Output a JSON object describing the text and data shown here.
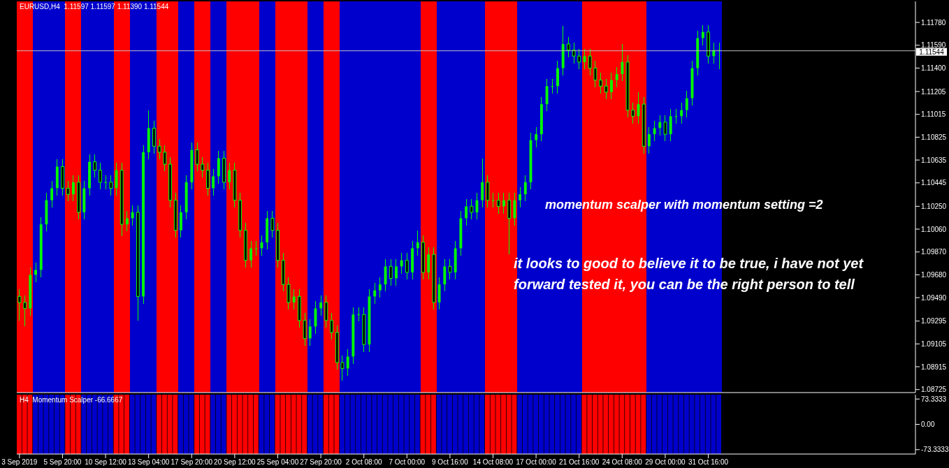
{
  "chart_data": [
    {
      "type": "candlestick",
      "title": "EURUSD,H4  1.11597 1.11597 1.11390 1.11544",
      "categories": [
        null,
        null,
        null,
        null,
        null,
        null,
        null,
        null,
        null,
        null,
        null,
        null,
        null,
        null,
        null,
        null,
        null,
        null,
        null,
        null,
        null,
        null,
        null,
        null,
        null,
        null,
        null,
        null,
        null,
        null,
        null,
        null,
        null,
        null,
        null,
        null,
        null,
        null,
        null,
        null,
        null,
        null,
        null,
        null,
        null,
        null,
        null,
        null,
        null,
        null,
        null,
        null,
        null,
        null,
        null,
        null,
        null,
        null,
        null,
        null,
        null,
        null,
        null,
        null,
        null,
        null,
        null,
        null,
        null,
        null,
        null,
        null,
        null,
        null,
        null,
        null,
        null,
        null,
        null,
        null,
        null,
        null,
        null,
        null,
        null,
        null,
        null,
        null,
        null,
        null,
        null,
        null,
        null,
        null,
        null,
        null,
        null,
        null,
        null,
        null,
        null,
        null,
        null,
        null,
        null,
        null,
        null,
        null,
        null,
        null,
        null,
        null,
        null,
        null,
        null,
        null,
        null,
        null,
        null,
        null,
        null,
        null,
        null,
        null,
        null,
        null,
        null,
        null,
        null,
        null,
        null,
        null,
        null,
        null,
        null,
        null,
        null,
        null,
        null,
        null,
        null,
        null,
        null,
        null,
        null,
        null,
        null,
        null,
        null,
        null,
        null,
        null,
        null,
        null,
        null,
        null,
        null,
        null,
        null,
        null,
        null,
        null,
        null,
        null,
        null,
        null,
        null
      ],
      "series": [
        {
          "color": "#00ff00",
          "ohlc": [
            [
              1.095,
              1.0956,
              1.093,
              1.0945
            ],
            [
              1.0945,
              1.0951,
              1.0925,
              1.094
            ],
            [
              1.094,
              1.0974,
              1.0934,
              1.0968
            ],
            [
              1.0968,
              1.0978,
              1.0962,
              1.0972
            ],
            [
              1.0972,
              1.1016,
              1.0966,
              1.101
            ],
            [
              1.101,
              1.1036,
              1.1004,
              1.103
            ],
            [
              1.103,
              1.1046,
              1.1024,
              1.104
            ],
            [
              1.104,
              1.1064,
              1.1034,
              1.1058
            ],
            [
              1.1058,
              1.1064,
              1.1034,
              1.104
            ],
            [
              1.104,
              1.1046,
              1.1029,
              1.1035
            ],
            [
              1.1035,
              1.1051,
              1.1029,
              1.1045
            ],
            [
              1.1045,
              1.1051,
              1.1014,
              1.102
            ],
            [
              1.102,
              1.1046,
              1.1014,
              1.104
            ],
            [
              1.104,
              1.1068,
              1.1034,
              1.1062
            ],
            [
              1.1062,
              1.1068,
              1.1049,
              1.1055
            ],
            [
              1.1055,
              1.1061,
              1.1039,
              1.1045
            ],
            [
              1.1045,
              1.1051,
              1.1039,
              1.1045
            ],
            [
              1.1045,
              1.1051,
              1.1034,
              1.104
            ],
            [
              1.104,
              1.1061,
              1.1034,
              1.1055
            ],
            [
              1.1055,
              1.1061,
              1.1,
              1.101
            ],
            [
              1.101,
              1.1021,
              1.1004,
              1.1015
            ],
            [
              1.1015,
              1.1026,
              1.1009,
              1.102
            ],
            [
              1.102,
              1.1026,
              1.093,
              1.095
            ],
            [
              1.095,
              1.1076,
              1.0944,
              1.107
            ],
            [
              1.107,
              1.1105,
              1.1064,
              1.109
            ],
            [
              1.109,
              1.1096,
              1.1069,
              1.1075
            ],
            [
              1.1075,
              1.1081,
              1.1064,
              1.107
            ],
            [
              1.107,
              1.1076,
              1.1054,
              1.106
            ],
            [
              1.106,
              1.1066,
              1.1024,
              1.103
            ],
            [
              1.103,
              1.1036,
              1.0999,
              1.1005
            ],
            [
              1.1005,
              1.1026,
              1.0999,
              1.102
            ],
            [
              1.102,
              1.1051,
              1.1014,
              1.1045
            ],
            [
              1.1045,
              1.1078,
              1.1039,
              1.1072
            ],
            [
              1.1072,
              1.1078,
              1.1054,
              1.106
            ],
            [
              1.106,
              1.1066,
              1.1049,
              1.1055
            ],
            [
              1.1055,
              1.1061,
              1.1034,
              1.104
            ],
            [
              1.104,
              1.1056,
              1.1034,
              1.105
            ],
            [
              1.105,
              1.1071,
              1.1044,
              1.1065
            ],
            [
              1.1065,
              1.1071,
              1.1039,
              1.1045
            ],
            [
              1.1045,
              1.1061,
              1.1039,
              1.1055
            ],
            [
              1.1055,
              1.1061,
              1.1024,
              1.103
            ],
            [
              1.103,
              1.1036,
              1.0999,
              1.1005
            ],
            [
              1.1005,
              1.1011,
              1.0974,
              1.098
            ],
            [
              1.098,
              1.0996,
              1.0974,
              1.099
            ],
            [
              1.099,
              1.0996,
              1.0984,
              1.099
            ],
            [
              1.099,
              1.1001,
              1.0984,
              1.0995
            ],
            [
              1.0995,
              1.1021,
              1.0989,
              1.1015
            ],
            [
              1.1015,
              1.1021,
              1.0999,
              1.1005
            ],
            [
              1.1005,
              1.1011,
              1.0974,
              1.098
            ],
            [
              1.098,
              1.0986,
              1.0954,
              1.096
            ],
            [
              1.096,
              1.0966,
              1.0939,
              1.0945
            ],
            [
              1.0945,
              1.0956,
              1.0939,
              1.095
            ],
            [
              1.095,
              1.0956,
              1.0924,
              1.093
            ],
            [
              1.093,
              1.0936,
              1.0909,
              1.0915
            ],
            [
              1.0915,
              1.0931,
              1.0909,
              1.0925
            ],
            [
              1.0925,
              1.0946,
              1.0919,
              1.094
            ],
            [
              1.094,
              1.0951,
              1.0934,
              1.0945
            ],
            [
              1.0945,
              1.0951,
              1.0924,
              1.093
            ],
            [
              1.093,
              1.0936,
              1.0914,
              1.092
            ],
            [
              1.092,
              1.0926,
              1.0889,
              1.0895
            ],
            [
              1.0895,
              1.0901,
              1.088,
              1.089
            ],
            [
              1.089,
              1.0906,
              1.0884,
              1.09
            ],
            [
              1.09,
              1.0941,
              1.0894,
              1.0935
            ],
            [
              1.0935,
              1.0941,
              1.0929,
              1.0935
            ],
            [
              1.0935,
              1.0941,
              1.0904,
              1.091
            ],
            [
              1.091,
              1.0956,
              1.0904,
              1.095
            ],
            [
              1.095,
              1.0961,
              1.0944,
              1.0955
            ],
            [
              1.0955,
              1.0966,
              1.0949,
              1.096
            ],
            [
              1.096,
              1.0981,
              1.0954,
              1.0975
            ],
            [
              1.0975,
              1.0981,
              1.0959,
              1.0965
            ],
            [
              1.0965,
              1.0981,
              1.0959,
              1.0975
            ],
            [
              1.0975,
              1.0986,
              1.0969,
              1.098
            ],
            [
              1.098,
              1.0986,
              1.0964,
              1.097
            ],
            [
              1.097,
              1.0996,
              1.0964,
              1.099
            ],
            [
              1.099,
              1.1005,
              1.0984,
              1.0995
            ],
            [
              1.0995,
              1.1001,
              1.0964,
              1.097
            ],
            [
              1.097,
              1.0991,
              1.0964,
              1.0985
            ],
            [
              1.0985,
              1.0991,
              1.0939,
              1.0945
            ],
            [
              1.0945,
              1.0966,
              1.0939,
              1.096
            ],
            [
              1.096,
              1.0981,
              1.0954,
              1.0975
            ],
            [
              1.0975,
              1.0981,
              1.0964,
              1.097
            ],
            [
              1.097,
              1.0996,
              1.0964,
              1.099
            ],
            [
              1.099,
              1.1021,
              1.0984,
              1.1015
            ],
            [
              1.1015,
              1.1031,
              1.1009,
              1.1025
            ],
            [
              1.1025,
              1.1031,
              1.1014,
              1.102
            ],
            [
              1.102,
              1.1036,
              1.1014,
              1.103
            ],
            [
              1.103,
              1.1065,
              1.1024,
              1.1045
            ],
            [
              1.1045,
              1.1051,
              1.1024,
              1.103
            ],
            [
              1.103,
              1.1036,
              1.1024,
              1.103
            ],
            [
              1.103,
              1.1036,
              1.1019,
              1.1025
            ],
            [
              1.1025,
              1.1036,
              1.1019,
              1.103
            ],
            [
              1.103,
              1.1036,
              1.0985,
              1.1015
            ],
            [
              1.1015,
              1.1036,
              1.1009,
              1.103
            ],
            [
              1.103,
              1.1041,
              1.1024,
              1.1035
            ],
            [
              1.1035,
              1.1051,
              1.1029,
              1.1045
            ],
            [
              1.1045,
              1.1086,
              1.1039,
              1.108
            ],
            [
              1.108,
              1.1091,
              1.1074,
              1.1085
            ],
            [
              1.1085,
              1.1116,
              1.1079,
              1.111
            ],
            [
              1.111,
              1.1131,
              1.1104,
              1.1125
            ],
            [
              1.1125,
              1.1131,
              1.1119,
              1.1125
            ],
            [
              1.1125,
              1.1146,
              1.1119,
              1.114
            ],
            [
              1.114,
              1.1175,
              1.1134,
              1.116
            ],
            [
              1.116,
              1.1166,
              1.1149,
              1.1155
            ],
            [
              1.1155,
              1.1161,
              1.1144,
              1.115
            ],
            [
              1.115,
              1.1156,
              1.1139,
              1.1145
            ],
            [
              1.1145,
              1.1156,
              1.1139,
              1.115
            ],
            [
              1.115,
              1.1156,
              1.1134,
              1.114
            ],
            [
              1.114,
              1.1146,
              1.1124,
              1.113
            ],
            [
              1.113,
              1.1136,
              1.1119,
              1.1125
            ],
            [
              1.1125,
              1.1131,
              1.1114,
              1.112
            ],
            [
              1.112,
              1.1136,
              1.1114,
              1.113
            ],
            [
              1.113,
              1.1141,
              1.1124,
              1.1135
            ],
            [
              1.1135,
              1.116,
              1.1129,
              1.1145
            ],
            [
              1.1145,
              1.1151,
              1.1099,
              1.1105
            ],
            [
              1.1105,
              1.1111,
              1.1094,
              1.11
            ],
            [
              1.11,
              1.112,
              1.1094,
              1.111
            ],
            [
              1.111,
              1.1116,
              1.1069,
              1.1075
            ],
            [
              1.1075,
              1.1091,
              1.1069,
              1.1085
            ],
            [
              1.1085,
              1.1096,
              1.1079,
              1.109
            ],
            [
              1.109,
              1.1101,
              1.1084,
              1.1095
            ],
            [
              1.1095,
              1.1101,
              1.1079,
              1.1085
            ],
            [
              1.1085,
              1.1106,
              1.1079,
              1.11
            ],
            [
              1.11,
              1.1106,
              1.1094,
              1.11
            ],
            [
              1.11,
              1.1111,
              1.1094,
              1.1105
            ],
            [
              1.1105,
              1.1121,
              1.1099,
              1.1115
            ],
            [
              1.1115,
              1.1146,
              1.1109,
              1.114
            ],
            [
              1.114,
              1.1171,
              1.1134,
              1.1165
            ],
            [
              1.1165,
              1.1176,
              1.1159,
              1.117
            ],
            [
              1.117,
              1.1176,
              1.1144,
              1.115
            ],
            [
              1.115,
              1.1161,
              1.1144,
              1.1155
            ],
            [
              1.1155,
              1.1161,
              1.1139,
              1.1155
            ],
            null,
            null,
            null,
            null,
            null,
            null,
            null,
            null,
            null,
            null,
            null,
            null,
            null,
            null,
            null,
            null,
            null,
            null,
            null,
            null,
            null,
            null,
            null,
            null,
            null,
            null,
            null,
            null,
            null,
            null,
            null,
            null,
            null,
            null,
            null,
            null
          ]
        }
      ],
      "ylim": [
        1.087,
        1.11955
      ],
      "yticks": [
        1.08725,
        1.08915,
        1.09105,
        1.09295,
        {
          "value": 1.0949,
          "label": "1.09490"
        },
        {
          "value": 1.0968,
          "label": "1.09680"
        },
        {
          "value": 1.0987,
          "label": "1.09870"
        },
        {
          "value": 1.1006,
          "label": "1.10060"
        },
        {
          "value": 1.1025,
          "label": "1.10250"
        },
        1.10445,
        1.10635,
        1.10825,
        1.11015,
        1.11205,
        {
          "value": 1.114,
          "label": "1.11400"
        },
        {
          "value": 1.1159,
          "label": "1.11590"
        },
        {
          "value": 1.1178,
          "label": "1.11780"
        }
      ],
      "tick_labels": "y",
      "ref_lines": [
        {
          "axis": "y",
          "value": 1.11544,
          "label": "1.11544",
          "color": "#c0c0c0"
        }
      ],
      "annotations": [
        "momentum scalper with momentum setting =2",
        "it looks to good to believe it to be true, i have not yet forward tested it, you can be the right person to tell"
      ]
    },
    {
      "type": "bar",
      "title": "H4  Momentum Scalper -66.6667",
      "categories": [
        "3 Sep 2019",
        null,
        null,
        null,
        null,
        null,
        null,
        null,
        "5 Sep 20:00",
        null,
        null,
        null,
        null,
        null,
        null,
        null,
        "10 Sep 12:00",
        null,
        null,
        null,
        null,
        null,
        null,
        null,
        "13 Sep 04:00",
        null,
        null,
        null,
        null,
        null,
        null,
        null,
        "17 Sep 20:00",
        null,
        null,
        null,
        null,
        null,
        null,
        null,
        "20 Sep 12:00",
        null,
        null,
        null,
        null,
        null,
        null,
        null,
        "25 Sep 04:00",
        null,
        null,
        null,
        null,
        null,
        null,
        null,
        "27 Sep 20:00",
        null,
        null,
        null,
        null,
        null,
        null,
        null,
        "2 Oct 08:00",
        null,
        null,
        null,
        null,
        null,
        null,
        null,
        "7 Oct 00:00",
        null,
        null,
        null,
        null,
        null,
        null,
        null,
        "9 Oct 16:00",
        null,
        null,
        null,
        null,
        null,
        null,
        null,
        "14 Oct 08:00",
        null,
        null,
        null,
        null,
        null,
        null,
        null,
        "17 Oct 00:00",
        null,
        null,
        null,
        null,
        null,
        null,
        null,
        "21 Oct 16:00",
        null,
        null,
        null,
        null,
        null,
        null,
        null,
        "24 Oct 08:00",
        null,
        null,
        null,
        null,
        null,
        null,
        null,
        "29 Oct 00:00",
        null,
        null,
        null,
        null,
        null,
        null,
        null,
        "31 Oct 16:00",
        null,
        null,
        null,
        null,
        null,
        null,
        null,
        null,
        null,
        null,
        null,
        null,
        null,
        null,
        null,
        null,
        null,
        null,
        null,
        null,
        null,
        null,
        null,
        null,
        null,
        null,
        null,
        null,
        null,
        null,
        null,
        null,
        null,
        null,
        null,
        null,
        null,
        null
      ],
      "values": [
        172,
        172,
        172,
        172,
        172,
        172,
        172,
        172,
        172,
        172,
        172,
        172,
        172,
        172,
        172,
        172,
        172,
        172,
        172,
        172,
        172,
        172,
        172,
        172,
        172,
        172,
        172,
        172,
        172,
        172,
        172,
        172,
        172,
        172,
        172,
        172,
        172,
        172,
        172,
        172,
        172,
        172,
        172,
        172,
        172,
        172,
        172,
        172,
        172,
        172,
        172,
        172,
        172,
        172,
        172,
        172,
        172,
        172,
        172,
        172,
        172,
        172,
        172,
        172,
        172,
        172,
        172,
        172,
        172,
        172,
        172,
        172,
        172,
        172,
        172,
        172,
        172,
        172,
        172,
        172,
        172,
        172,
        172,
        172,
        172,
        172,
        172,
        172,
        172,
        172,
        172,
        172,
        172,
        172,
        172,
        172,
        172,
        172,
        172,
        172,
        172,
        172,
        172,
        172,
        172,
        172,
        172,
        172,
        172,
        172,
        172,
        172,
        172,
        172,
        172,
        172,
        172,
        172,
        172,
        172,
        172,
        172,
        172,
        172,
        172,
        172,
        172,
        172,
        172,
        172,
        172,
        null,
        null,
        null,
        null,
        null,
        null,
        null,
        null,
        null,
        null,
        null,
        null,
        null,
        null,
        null,
        null,
        null,
        null,
        null,
        null,
        null,
        null,
        null,
        null,
        null,
        null,
        null,
        null,
        null,
        null,
        null,
        null,
        null,
        null,
        null,
        null
      ],
      "base": [
        -86,
        -86,
        -86,
        -86,
        -86,
        -86,
        -86,
        -86,
        -86,
        -86,
        -86,
        -86,
        -86,
        -86,
        -86,
        -86,
        -86,
        -86,
        -86,
        -86,
        -86,
        -86,
        -86,
        -86,
        -86,
        -86,
        -86,
        -86,
        -86,
        -86,
        -86,
        -86,
        -86,
        -86,
        -86,
        -86,
        -86,
        -86,
        -86,
        -86,
        -86,
        -86,
        -86,
        -86,
        -86,
        -86,
        -86,
        -86,
        -86,
        -86,
        -86,
        -86,
        -86,
        -86,
        -86,
        -86,
        -86,
        -86,
        -86,
        -86,
        -86,
        -86,
        -86,
        -86,
        -86,
        -86,
        -86,
        -86,
        -86,
        -86,
        -86,
        -86,
        -86,
        -86,
        -86,
        -86,
        -86,
        -86,
        -86,
        -86,
        -86,
        -86,
        -86,
        -86,
        -86,
        -86,
        -86,
        -86,
        -86,
        -86,
        -86,
        -86,
        -86,
        -86,
        -86,
        -86,
        -86,
        -86,
        -86,
        -86,
        -86,
        -86,
        -86,
        -86,
        -86,
        -86,
        -86,
        -86,
        -86,
        -86,
        -86,
        -86,
        -86,
        -86,
        -86,
        -86,
        -86,
        -86,
        -86,
        -86,
        -86,
        -86,
        -86,
        -86,
        -86,
        -86,
        -86,
        -86,
        -86,
        -86,
        -86,
        null,
        null,
        null,
        null,
        null,
        null,
        null,
        null,
        null,
        null,
        null,
        null,
        null,
        null,
        null,
        null,
        null,
        null,
        null,
        null,
        null,
        null,
        null,
        null,
        null,
        null,
        null,
        null,
        null,
        null,
        null,
        null,
        null,
        null,
        null,
        null
      ],
      "colors": [
        "#ff0000",
        "#ff0000",
        "#ff0000",
        "#0000cc",
        "#0000cc",
        "#0000cc",
        "#0000cc",
        "#0000cc",
        "#0000cc",
        "#ff0000",
        "#ff0000",
        "#ff0000",
        "#0000cc",
        "#0000cc",
        "#0000cc",
        "#0000cc",
        "#0000cc",
        "#0000cc",
        "#ff0000",
        "#ff0000",
        "#ff0000",
        "#0000cc",
        "#0000cc",
        "#0000cc",
        "#0000cc",
        "#0000cc",
        "#ff0000",
        "#ff0000",
        "#ff0000",
        "#ff0000",
        "#0000cc",
        "#0000cc",
        "#0000cc",
        "#ff0000",
        "#ff0000",
        "#ff0000",
        "#0000cc",
        "#0000cc",
        "#0000cc",
        "#ff0000",
        "#ff0000",
        "#ff0000",
        "#ff0000",
        "#ff0000",
        "#ff0000",
        "#0000cc",
        "#0000cc",
        "#0000cc",
        "#ff0000",
        "#ff0000",
        "#ff0000",
        "#ff0000",
        "#ff0000",
        "#ff0000",
        "#0000cc",
        "#0000cc",
        "#0000cc",
        "#ff0000",
        "#ff0000",
        "#ff0000",
        "#0000cc",
        "#0000cc",
        "#0000cc",
        "#0000cc",
        "#0000cc",
        "#0000cc",
        "#0000cc",
        "#0000cc",
        "#0000cc",
        "#0000cc",
        "#0000cc",
        "#0000cc",
        "#0000cc",
        "#0000cc",
        "#0000cc",
        "#ff0000",
        "#ff0000",
        "#ff0000",
        "#0000cc",
        "#0000cc",
        "#0000cc",
        "#0000cc",
        "#0000cc",
        "#0000cc",
        "#0000cc",
        "#0000cc",
        "#0000cc",
        "#ff0000",
        "#ff0000",
        "#ff0000",
        "#ff0000",
        "#ff0000",
        "#ff0000",
        "#0000cc",
        "#0000cc",
        "#0000cc",
        "#0000cc",
        "#0000cc",
        "#0000cc",
        "#0000cc",
        "#0000cc",
        "#0000cc",
        "#0000cc",
        "#0000cc",
        "#0000cc",
        "#ff0000",
        "#ff0000",
        "#ff0000",
        "#ff0000",
        "#ff0000",
        "#ff0000",
        "#ff0000",
        "#ff0000",
        "#ff0000",
        "#ff0000",
        "#ff0000",
        "#ff0000",
        "#0000cc",
        "#0000cc",
        "#0000cc",
        "#0000cc",
        "#0000cc",
        "#0000cc",
        "#0000cc",
        "#0000cc",
        "#0000cc",
        "#0000cc",
        "#0000cc",
        "#0000cc",
        "#0000cc",
        "#0000cc",
        null,
        null,
        null,
        null,
        null,
        null,
        null,
        null,
        null,
        null,
        null,
        null,
        null,
        null,
        null,
        null,
        null,
        null,
        null,
        null,
        null,
        null,
        null,
        null,
        null,
        null,
        null,
        null,
        null,
        null,
        null,
        null,
        null,
        null,
        null,
        null
      ],
      "ylim": [
        -86,
        86
      ],
      "yticks": [
        {
          "value": 73.3333,
          "label": "73.3333"
        },
        {
          "value": 0,
          "label": "0.00"
        },
        {
          "value": -73.3333,
          "label": "-73.3333"
        }
      ]
    }
  ]
}
